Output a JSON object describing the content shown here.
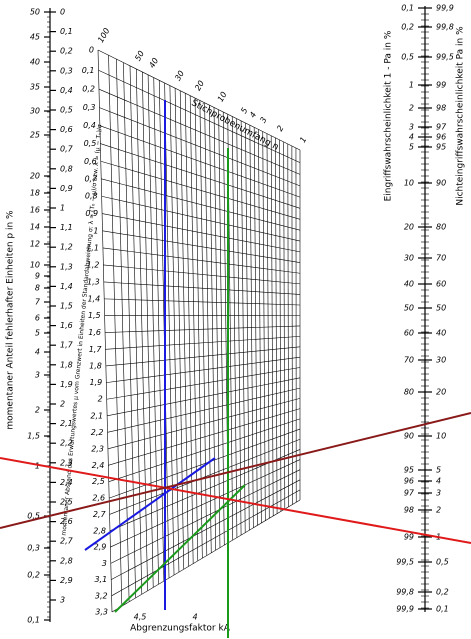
{
  "left_scale": {
    "title": "momentaner Anteil fehlerhafter Einheiten p in %",
    "p_labels": [
      "50",
      "45",
      "40",
      "35",
      "30",
      "25",
      "20",
      "18",
      "16",
      "14",
      "12",
      "10",
      "9",
      "8",
      "7",
      "6",
      "5",
      "4",
      "3",
      "2",
      "1,5",
      "1",
      "0,5",
      "0,3",
      "0,2",
      "0,1"
    ],
    "lambda_labels": [
      "0",
      "0,1",
      "0,2",
      "0,3",
      "0,4",
      "0,5",
      "0,6",
      "0,7",
      "0,8",
      "0,9",
      "1",
      "1,1",
      "1,2",
      "1,3",
      "1,4",
      "1,5",
      "1,6",
      "1,7",
      "1,8",
      "1,9",
      "2",
      "2,1",
      "2,2",
      "2,3",
      "2,4",
      "2,5",
      "2,6",
      "2,7",
      "2,8",
      "2,9",
      "3"
    ]
  },
  "grid": {
    "lambda_title": "momentaner Abstand des Erwartungswertes μ vom Grenzwert in Einheiten der Standardabweichung σ: λ = (T₀ − μ)/σ bzw. λ = (μ − Tᵤ)/σ",
    "lambda_labels": [
      "0",
      "0,1",
      "0,2",
      "0,3",
      "0,4",
      "0,5",
      "0,6",
      "0,7",
      "0,8",
      "0,9",
      "1",
      "1,1",
      "1,2",
      "1,3",
      "1,4",
      "1,5",
      "1,6",
      "1,7",
      "1,8",
      "1,9",
      "2",
      "2,1",
      "2,2",
      "2,3",
      "2,4",
      "2,5",
      "2,6",
      "2,7",
      "2,8",
      "2,9",
      "3",
      "3,1",
      "3,2",
      "3,3"
    ],
    "n_title": "Stichprobenumfang n",
    "n_labels": [
      "100",
      "50",
      "40",
      "30",
      "20",
      "10",
      "5",
      "4",
      "3",
      "2",
      "1"
    ],
    "k_title": "Abgrenzungsfaktor kA",
    "k_labels": [
      "4,5",
      "4"
    ]
  },
  "right_scale": {
    "left_title": "Eingriffswahrscheinlichkeit 1 - Pa in %",
    "right_title": "Nichteingriffswahrscheinlichkeit Pa in %",
    "left_labels": [
      "0,1",
      "0,2",
      "0,5",
      "1",
      "2",
      "3",
      "4",
      "5",
      "10",
      "20",
      "30",
      "40",
      "50",
      "60",
      "70",
      "80",
      "90",
      "95",
      "96",
      "97",
      "98",
      "99",
      "99,5",
      "99,8",
      "99,9"
    ],
    "right_labels": [
      "99,9",
      "99,8",
      "99,5",
      "99",
      "98",
      "97",
      "96",
      "95",
      "90",
      "80",
      "70",
      "60",
      "50",
      "40",
      "30",
      "20",
      "10",
      "5",
      "4",
      "3",
      "2",
      "1",
      "0,5",
      "0,2",
      "0,1"
    ]
  }
}
